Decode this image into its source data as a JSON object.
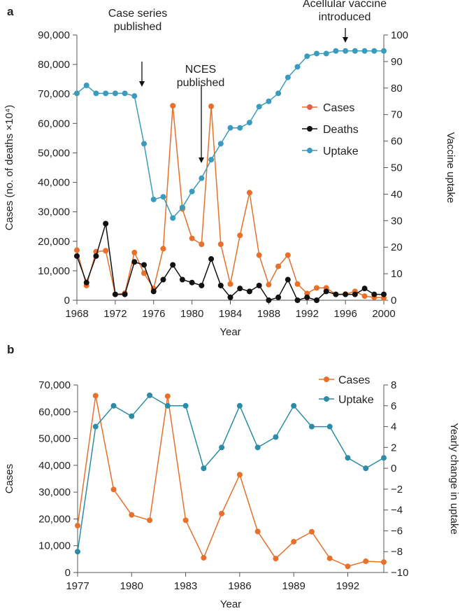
{
  "chart_data": [
    {
      "panel_label": "a",
      "type": "line",
      "xlabel": "Year",
      "ylabel": "Cases (no. of deaths ×10⁴)",
      "ylabel_right": "Vaccine uptake",
      "xlim": [
        1968,
        2000
      ],
      "ylim": [
        0,
        90000
      ],
      "ylim_right": [
        0,
        100
      ],
      "x_ticks": [
        "1968",
        "1972",
        "1976",
        "1980",
        "1984",
        "1988",
        "1992",
        "1996",
        "2000"
      ],
      "y_ticks": [
        "0",
        "10,000",
        "20,000",
        "30,000",
        "40,000",
        "50,000",
        "60,000",
        "70,000",
        "80,000",
        "90,000"
      ],
      "y_ticks_right": [
        "0",
        "10",
        "20",
        "30",
        "40",
        "50",
        "60",
        "70",
        "80",
        "90",
        "100"
      ],
      "x": [
        1968,
        1969,
        1970,
        1971,
        1972,
        1973,
        1974,
        1975,
        1976,
        1977,
        1978,
        1979,
        1980,
        1981,
        1982,
        1983,
        1984,
        1985,
        1986,
        1987,
        1988,
        1989,
        1990,
        1991,
        1992,
        1993,
        1994,
        1995,
        1996,
        1997,
        1998,
        1999,
        2000
      ],
      "series": [
        {
          "name": "Cases",
          "axis": "left",
          "color": "#e8702a",
          "values": [
            17000,
            5000,
            16500,
            16800,
            2000,
            2400,
            16200,
            9200,
            4000,
            17500,
            66000,
            31000,
            21000,
            19000,
            65800,
            19000,
            5500,
            22000,
            36500,
            15300,
            5300,
            11500,
            15300,
            5500,
            2300,
            4200,
            4200,
            2000,
            2100,
            3000,
            1400,
            1000,
            800
          ]
        },
        {
          "name": "Deaths",
          "axis": "left",
          "color": "#111111",
          "values": [
            15000,
            6000,
            15000,
            26000,
            2000,
            2000,
            13000,
            12000,
            3000,
            7000,
            12000,
            7000,
            6000,
            5000,
            14000,
            5000,
            1000,
            4000,
            3000,
            5000,
            0,
            1000,
            7000,
            0,
            1000,
            0,
            3000,
            2000,
            2000,
            2000,
            4000,
            2000,
            2000
          ]
        },
        {
          "name": "Uptake",
          "axis": "right",
          "color": "#3a9bbf",
          "values": [
            78,
            81,
            78,
            78,
            78,
            78,
            77,
            59,
            38,
            39,
            31,
            35,
            41,
            46,
            53,
            59,
            65,
            65,
            67,
            73,
            75,
            78,
            84,
            88,
            92,
            93,
            93,
            94,
            94,
            94,
            94,
            94,
            94
          ]
        }
      ],
      "legend_position": "center-right",
      "annotations": [
        {
          "text": [
            "Case series",
            "published"
          ],
          "year": 1974
        },
        {
          "text": [
            "NCES",
            "published"
          ],
          "year": 1981
        },
        {
          "text": [
            "Acellular vaccine",
            "introduced"
          ],
          "year": 1996
        }
      ]
    },
    {
      "panel_label": "b",
      "type": "line",
      "xlabel": "Year",
      "ylabel": "Cases",
      "ylabel_right": "Yearly change in uptake",
      "xlim": [
        1977,
        1994
      ],
      "ylim": [
        0,
        70000
      ],
      "ylim_right": [
        -10,
        8
      ],
      "x_ticks": [
        "1977",
        "1980",
        "1983",
        "1986",
        "1989",
        "1992"
      ],
      "y_ticks": [
        "0",
        "10,000",
        "20,000",
        "30,000",
        "40,000",
        "50,000",
        "60,000",
        "70,000"
      ],
      "y_ticks_right": [
        "−10",
        "−8",
        "−6",
        "−4",
        "−2",
        "0",
        "2",
        "4",
        "6",
        "8"
      ],
      "x": [
        1977,
        1978,
        1979,
        1980,
        1981,
        1982,
        1983,
        1984,
        1985,
        1986,
        1987,
        1988,
        1989,
        1990,
        1991,
        1992,
        1993,
        1994
      ],
      "series": [
        {
          "name": "Cases",
          "axis": "left",
          "color": "#e8702a",
          "values": [
            17500,
            66000,
            31000,
            21500,
            19500,
            65800,
            19500,
            5500,
            22000,
            36500,
            15300,
            5200,
            11500,
            15200,
            5300,
            2300,
            4200,
            3900
          ]
        },
        {
          "name": "Uptake",
          "axis": "right",
          "color": "#2b8ca8",
          "values": [
            -8,
            4,
            6,
            5,
            7,
            6,
            6,
            0,
            2,
            6,
            2,
            3,
            6,
            4,
            4,
            1,
            0,
            1
          ]
        }
      ],
      "legend_position": "top-right"
    }
  ]
}
